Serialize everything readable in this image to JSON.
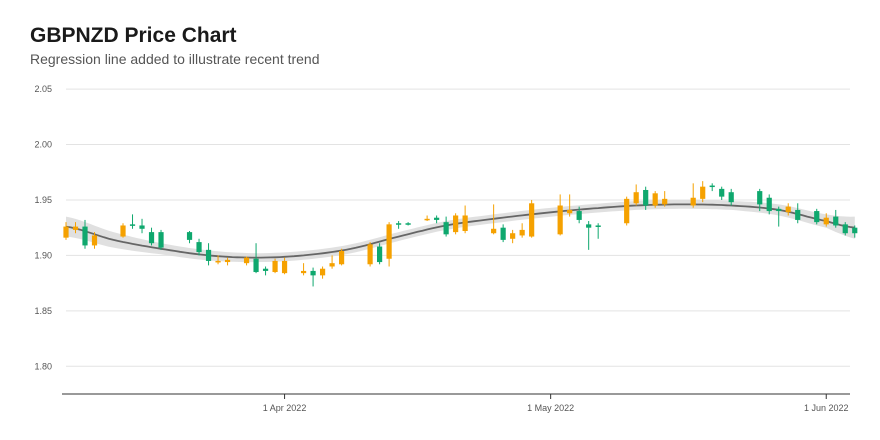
{
  "header": {
    "title": "GBPNZD Price Chart",
    "subtitle": "Regression line added to illustrate recent trend"
  },
  "colors": {
    "up": "#0fa86e",
    "down": "#f5a100",
    "regression": "#666666",
    "band": "#dddddd",
    "grid": "#e3e3e3"
  },
  "chart_data": {
    "type": "candlestick",
    "title": "GBPNZD Price Chart",
    "subtitle": "Regression line added to illustrate recent trend",
    "ylim": [
      1.775,
      2.06
    ],
    "yticks": [
      {
        "v": 1.8,
        "label": "1.80"
      },
      {
        "v": 1.85,
        "label": "1.85"
      },
      {
        "v": 1.9,
        "label": "1.90"
      },
      {
        "v": 1.95,
        "label": "1.95"
      },
      {
        "v": 2.0,
        "label": "2.00"
      },
      {
        "v": 2.05,
        "label": "2.05"
      }
    ],
    "xlim": [
      0,
      82.5
    ],
    "xticks": [
      {
        "x": 23,
        "label": "1 Apr 2022"
      },
      {
        "x": 51,
        "label": "1 May 2022"
      },
      {
        "x": 80,
        "label": "1 Jun 2022"
      }
    ],
    "grid": true,
    "candles": [
      {
        "x": 0,
        "o": 1.916,
        "c": 1.926,
        "h": 1.93,
        "l": 1.914,
        "dir": "down"
      },
      {
        "x": 1,
        "o": 1.923,
        "c": 1.926,
        "h": 1.93,
        "l": 1.92,
        "dir": "down"
      },
      {
        "x": 2,
        "o": 1.926,
        "c": 1.909,
        "h": 1.932,
        "l": 1.906,
        "dir": "up"
      },
      {
        "x": 3,
        "o": 1.909,
        "c": 1.918,
        "h": 1.921,
        "l": 1.906,
        "dir": "down"
      },
      {
        "x": 6,
        "o": 1.917,
        "c": 1.927,
        "h": 1.929,
        "l": 1.916,
        "dir": "down"
      },
      {
        "x": 7,
        "o": 1.928,
        "c": 1.927,
        "h": 1.937,
        "l": 1.924,
        "dir": "up"
      },
      {
        "x": 8,
        "o": 1.927,
        "c": 1.924,
        "h": 1.933,
        "l": 1.92,
        "dir": "up"
      },
      {
        "x": 9,
        "o": 1.921,
        "c": 1.911,
        "h": 1.925,
        "l": 1.909,
        "dir": "up"
      },
      {
        "x": 10,
        "o": 1.921,
        "c": 1.907,
        "h": 1.923,
        "l": 1.905,
        "dir": "up"
      },
      {
        "x": 13,
        "o": 1.921,
        "c": 1.914,
        "h": 1.922,
        "l": 1.911,
        "dir": "up"
      },
      {
        "x": 14,
        "o": 1.912,
        "c": 1.903,
        "h": 1.915,
        "l": 1.9,
        "dir": "up"
      },
      {
        "x": 15,
        "o": 1.905,
        "c": 1.895,
        "h": 1.911,
        "l": 1.891,
        "dir": "up"
      },
      {
        "x": 16,
        "o": 1.894,
        "c": 1.895,
        "h": 1.9,
        "l": 1.892,
        "dir": "down"
      },
      {
        "x": 17,
        "o": 1.894,
        "c": 1.896,
        "h": 1.898,
        "l": 1.891,
        "dir": "down"
      },
      {
        "x": 19,
        "o": 1.893,
        "c": 1.898,
        "h": 1.899,
        "l": 1.891,
        "dir": "down"
      },
      {
        "x": 20,
        "o": 1.897,
        "c": 1.885,
        "h": 1.911,
        "l": 1.884,
        "dir": "up"
      },
      {
        "x": 21,
        "o": 1.888,
        "c": 1.886,
        "h": 1.89,
        "l": 1.882,
        "dir": "up"
      },
      {
        "x": 22,
        "o": 1.895,
        "c": 1.885,
        "h": 1.897,
        "l": 1.884,
        "dir": "down"
      },
      {
        "x": 23,
        "o": 1.884,
        "c": 1.895,
        "h": 1.898,
        "l": 1.883,
        "dir": "down"
      },
      {
        "x": 25,
        "o": 1.884,
        "c": 1.886,
        "h": 1.893,
        "l": 1.882,
        "dir": "down"
      },
      {
        "x": 26,
        "o": 1.886,
        "c": 1.882,
        "h": 1.889,
        "l": 1.872,
        "dir": "up"
      },
      {
        "x": 27,
        "o": 1.882,
        "c": 1.888,
        "h": 1.89,
        "l": 1.879,
        "dir": "down"
      },
      {
        "x": 28,
        "o": 1.89,
        "c": 1.893,
        "h": 1.9,
        "l": 1.888,
        "dir": "down"
      },
      {
        "x": 29,
        "o": 1.892,
        "c": 1.904,
        "h": 1.906,
        "l": 1.891,
        "dir": "down"
      },
      {
        "x": 32,
        "o": 1.892,
        "c": 1.91,
        "h": 1.912,
        "l": 1.89,
        "dir": "down"
      },
      {
        "x": 33,
        "o": 1.908,
        "c": 1.894,
        "h": 1.911,
        "l": 1.892,
        "dir": "up"
      },
      {
        "x": 34,
        "o": 1.897,
        "c": 1.928,
        "h": 1.93,
        "l": 1.89,
        "dir": "down"
      },
      {
        "x": 35,
        "o": 1.928,
        "c": 1.929,
        "h": 1.931,
        "l": 1.924,
        "dir": "up"
      },
      {
        "x": 36,
        "o": 1.929,
        "c": 1.929,
        "h": 1.93,
        "l": 1.927,
        "dir": "up"
      },
      {
        "x": 38,
        "o": 1.932,
        "c": 1.933,
        "h": 1.936,
        "l": 1.931,
        "dir": "down"
      },
      {
        "x": 39,
        "o": 1.934,
        "c": 1.932,
        "h": 1.936,
        "l": 1.929,
        "dir": "up"
      },
      {
        "x": 40,
        "o": 1.93,
        "c": 1.919,
        "h": 1.935,
        "l": 1.917,
        "dir": "up"
      },
      {
        "x": 41,
        "o": 1.921,
        "c": 1.936,
        "h": 1.938,
        "l": 1.919,
        "dir": "down"
      },
      {
        "x": 42,
        "o": 1.922,
        "c": 1.936,
        "h": 1.945,
        "l": 1.92,
        "dir": "down"
      },
      {
        "x": 45,
        "o": 1.92,
        "c": 1.924,
        "h": 1.946,
        "l": 1.919,
        "dir": "down"
      },
      {
        "x": 46,
        "o": 1.925,
        "c": 1.914,
        "h": 1.928,
        "l": 1.912,
        "dir": "up"
      },
      {
        "x": 47,
        "o": 1.915,
        "c": 1.92,
        "h": 1.923,
        "l": 1.911,
        "dir": "down"
      },
      {
        "x": 48,
        "o": 1.918,
        "c": 1.923,
        "h": 1.929,
        "l": 1.916,
        "dir": "down"
      },
      {
        "x": 49,
        "o": 1.917,
        "c": 1.947,
        "h": 1.95,
        "l": 1.916,
        "dir": "down"
      },
      {
        "x": 52,
        "o": 1.919,
        "c": 1.945,
        "h": 1.955,
        "l": 1.918,
        "dir": "down"
      },
      {
        "x": 53,
        "o": 1.938,
        "c": 1.941,
        "h": 1.955,
        "l": 1.935,
        "dir": "down"
      },
      {
        "x": 54,
        "o": 1.94,
        "c": 1.932,
        "h": 1.944,
        "l": 1.929,
        "dir": "up"
      },
      {
        "x": 55,
        "o": 1.928,
        "c": 1.925,
        "h": 1.931,
        "l": 1.905,
        "dir": "up"
      },
      {
        "x": 56,
        "o": 1.927,
        "c": 1.927,
        "h": 1.929,
        "l": 1.915,
        "dir": "up"
      },
      {
        "x": 59,
        "o": 1.929,
        "c": 1.951,
        "h": 1.953,
        "l": 1.927,
        "dir": "down"
      },
      {
        "x": 60,
        "o": 1.947,
        "c": 1.957,
        "h": 1.964,
        "l": 1.945,
        "dir": "down"
      },
      {
        "x": 61,
        "o": 1.959,
        "c": 1.945,
        "h": 1.962,
        "l": 1.941,
        "dir": "up"
      },
      {
        "x": 62,
        "o": 1.945,
        "c": 1.956,
        "h": 1.958,
        "l": 1.943,
        "dir": "down"
      },
      {
        "x": 63,
        "o": 1.951,
        "c": 1.946,
        "h": 1.958,
        "l": 1.944,
        "dir": "down"
      },
      {
        "x": 66,
        "o": 1.945,
        "c": 1.952,
        "h": 1.965,
        "l": 1.943,
        "dir": "down"
      },
      {
        "x": 67,
        "o": 1.951,
        "c": 1.962,
        "h": 1.967,
        "l": 1.948,
        "dir": "down"
      },
      {
        "x": 68,
        "o": 1.962,
        "c": 1.963,
        "h": 1.965,
        "l": 1.958,
        "dir": "up"
      },
      {
        "x": 69,
        "o": 1.96,
        "c": 1.953,
        "h": 1.962,
        "l": 1.95,
        "dir": "up"
      },
      {
        "x": 70,
        "o": 1.957,
        "c": 1.948,
        "h": 1.96,
        "l": 1.945,
        "dir": "up"
      },
      {
        "x": 73,
        "o": 1.958,
        "c": 1.946,
        "h": 1.96,
        "l": 1.94,
        "dir": "up"
      },
      {
        "x": 74,
        "o": 1.952,
        "c": 1.94,
        "h": 1.955,
        "l": 1.937,
        "dir": "up"
      },
      {
        "x": 75,
        "o": 1.942,
        "c": 1.94,
        "h": 1.944,
        "l": 1.926,
        "dir": "up"
      },
      {
        "x": 76,
        "o": 1.939,
        "c": 1.944,
        "h": 1.947,
        "l": 1.936,
        "dir": "down"
      },
      {
        "x": 77,
        "o": 1.941,
        "c": 1.932,
        "h": 1.947,
        "l": 1.929,
        "dir": "up"
      },
      {
        "x": 79,
        "o": 1.94,
        "c": 1.93,
        "h": 1.942,
        "l": 1.928,
        "dir": "up"
      },
      {
        "x": 80,
        "o": 1.928,
        "c": 1.934,
        "h": 1.938,
        "l": 1.926,
        "dir": "down"
      },
      {
        "x": 81,
        "o": 1.935,
        "c": 1.927,
        "h": 1.941,
        "l": 1.925,
        "dir": "up"
      },
      {
        "x": 82,
        "o": 1.928,
        "c": 1.92,
        "h": 1.93,
        "l": 1.918,
        "dir": "up"
      },
      {
        "x": 83,
        "o": 1.925,
        "c": 1.92,
        "h": 1.927,
        "l": 1.916,
        "dir": "up"
      }
    ],
    "regression": [
      {
        "x": 0,
        "y": 1.926
      },
      {
        "x": 5,
        "y": 1.914
      },
      {
        "x": 10,
        "y": 1.906
      },
      {
        "x": 15,
        "y": 1.9
      },
      {
        "x": 20,
        "y": 1.898
      },
      {
        "x": 25,
        "y": 1.9
      },
      {
        "x": 30,
        "y": 1.906
      },
      {
        "x": 35,
        "y": 1.917
      },
      {
        "x": 40,
        "y": 1.927
      },
      {
        "x": 45,
        "y": 1.933
      },
      {
        "x": 50,
        "y": 1.938
      },
      {
        "x": 55,
        "y": 1.942
      },
      {
        "x": 60,
        "y": 1.945
      },
      {
        "x": 65,
        "y": 1.946
      },
      {
        "x": 70,
        "y": 1.945
      },
      {
        "x": 75,
        "y": 1.941
      },
      {
        "x": 80,
        "y": 1.931
      },
      {
        "x": 83,
        "y": 1.925
      }
    ],
    "band_width": [
      {
        "x": 0,
        "w": 0.009
      },
      {
        "x": 10,
        "w": 0.005
      },
      {
        "x": 20,
        "w": 0.004
      },
      {
        "x": 30,
        "w": 0.004
      },
      {
        "x": 40,
        "w": 0.004
      },
      {
        "x": 50,
        "w": 0.004
      },
      {
        "x": 60,
        "w": 0.004
      },
      {
        "x": 70,
        "w": 0.004
      },
      {
        "x": 80,
        "w": 0.006
      },
      {
        "x": 83,
        "w": 0.01
      }
    ]
  }
}
